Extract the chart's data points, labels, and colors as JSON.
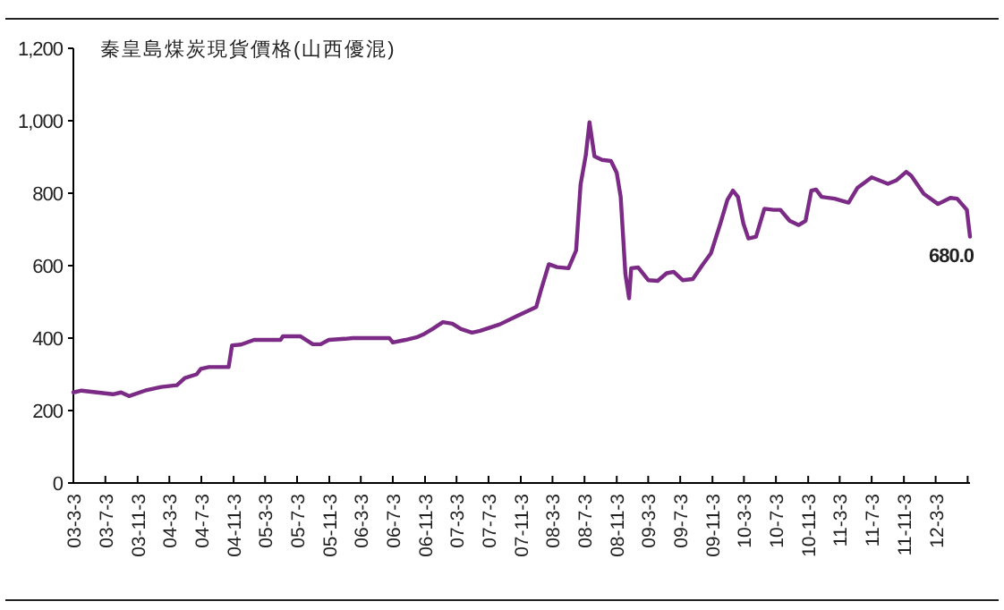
{
  "chart_data": {
    "type": "line",
    "title": "秦皇島煤炭現貨價格(山西優混)",
    "x": [
      "2003-03-03",
      "2003-04-03",
      "2003-08-01",
      "2003-09-01",
      "2003-10-01",
      "2003-12-01",
      "2004-02-01",
      "2004-04-01",
      "2004-05-01",
      "2004-06-15",
      "2004-07-01",
      "2004-08-01",
      "2004-10-15",
      "2004-10-28",
      "2004-12-01",
      "2005-01-20",
      "2005-05-01",
      "2005-05-10",
      "2005-07-15",
      "2005-09-01",
      "2005-10-01",
      "2005-11-01",
      "2006-01-01",
      "2006-02-01",
      "2006-06-20",
      "2006-07-03",
      "2006-08-20",
      "2006-10-01",
      "2006-11-01",
      "2006-12-01",
      "2007-01-10",
      "2007-02-15",
      "2007-03-20",
      "2007-05-01",
      "2007-06-01",
      "2007-08-15",
      "2007-10-20",
      "2008-01-01",
      "2008-01-20",
      "2008-02-18",
      "2008-03-20",
      "2008-05-03",
      "2008-06-01",
      "2008-06-18",
      "2008-07-08",
      "2008-07-22",
      "2008-08-10",
      "2008-09-08",
      "2008-10-12",
      "2008-11-03",
      "2008-11-18",
      "2008-12-06",
      "2008-12-20",
      "2008-12-28",
      "2009-01-24",
      "2009-03-03",
      "2009-04-08",
      "2009-05-12",
      "2009-06-08",
      "2009-07-12",
      "2009-08-20",
      "2009-09-24",
      "2009-10-28",
      "2009-12-03",
      "2009-12-30",
      "2010-01-20",
      "2010-02-08",
      "2010-03-01",
      "2010-03-20",
      "2010-04-18",
      "2010-05-20",
      "2010-06-24",
      "2010-07-20",
      "2010-08-24",
      "2010-09-28",
      "2010-10-24",
      "2010-11-15",
      "2010-12-03",
      "2010-12-24",
      "2011-02-12",
      "2011-04-06",
      "2011-05-10",
      "2011-07-03",
      "2011-09-03",
      "2011-10-06",
      "2011-11-12",
      "2011-12-01",
      "2012-01-18",
      "2012-03-12",
      "2012-04-28",
      "2012-05-24",
      "2012-06-30",
      "2012-07-12"
    ],
    "series": [
      {
        "color": "#7b2a86",
        "values": [
          250,
          255,
          245,
          250,
          240,
          255,
          265,
          270,
          290,
          300,
          315,
          320,
          320,
          380,
          382,
          395,
          395,
          405,
          405,
          383,
          383,
          395,
          398,
          400,
          400,
          388,
          395,
          402,
          412,
          425,
          444,
          440,
          425,
          415,
          420,
          438,
          461,
          486,
          535,
          604,
          596,
          593,
          642,
          824,
          905,
          996,
          902,
          892,
          889,
          856,
          790,
          577,
          510,
          593,
          595,
          560,
          558,
          579,
          583,
          560,
          563,
          600,
          634,
          716,
          782,
          807,
          790,
          716,
          675,
          680,
          757,
          754,
          754,
          724,
          712,
          724,
          807,
          810,
          790,
          785,
          774,
          815,
          844,
          826,
          836,
          859,
          848,
          798,
          770,
          787,
          785,
          754,
          680
        ]
      }
    ],
    "xlim": [
      "2003-03-03",
      "2012-07-12"
    ],
    "ylim": [
      0,
      1200
    ],
    "yticks": [
      0,
      {
        "value": 200,
        "label": "200"
      },
      {
        "value": 400,
        "label": "400"
      },
      {
        "value": 600,
        "label": "600"
      },
      {
        "value": 800,
        "label": "800"
      },
      {
        "value": 1000,
        "label": "1,000"
      },
      {
        "value": 1200,
        "label": "1,200"
      }
    ],
    "xticks": [
      {
        "value": "2003-03-03",
        "label": "03-3-3"
      },
      {
        "value": "2003-07-03",
        "label": "03-7-3"
      },
      {
        "value": "2003-11-03",
        "label": "03-11-3"
      },
      {
        "value": "2004-03-03",
        "label": "04-3-3"
      },
      {
        "value": "2004-07-03",
        "label": "04-7-3"
      },
      {
        "value": "2004-11-03",
        "label": "04-11-3"
      },
      {
        "value": "2005-03-03",
        "label": "05-3-3"
      },
      {
        "value": "2005-07-03",
        "label": "05-7-3"
      },
      {
        "value": "2005-11-03",
        "label": "05-11-3"
      },
      {
        "value": "2006-03-03",
        "label": "06-3-3"
      },
      {
        "value": "2006-07-03",
        "label": "06-7-3"
      },
      {
        "value": "2006-11-03",
        "label": "06-11-3"
      },
      {
        "value": "2007-03-03",
        "label": "07-3-3"
      },
      {
        "value": "2007-07-03",
        "label": "07-7-3"
      },
      {
        "value": "2007-11-03",
        "label": "07-11-3"
      },
      {
        "value": "2008-03-03",
        "label": "08-3-3"
      },
      {
        "value": "2008-07-03",
        "label": "08-7-3"
      },
      {
        "value": "2008-11-03",
        "label": "08-11-3"
      },
      {
        "value": "2009-03-03",
        "label": "09-3-3"
      },
      {
        "value": "2009-07-03",
        "label": "09-7-3"
      },
      {
        "value": "2009-11-03",
        "label": "09-11-3"
      },
      {
        "value": "2010-03-03",
        "label": "10-3-3"
      },
      {
        "value": "2010-07-03",
        "label": "10-7-3"
      },
      {
        "value": "2010-11-03",
        "label": "10-11-3"
      },
      {
        "value": "2011-03-03",
        "label": "11-3-3"
      },
      {
        "value": "2011-07-03",
        "label": "11-7-3"
      },
      {
        "value": "2011-11-03",
        "label": "11-11-3"
      },
      {
        "value": "2012-03-03",
        "label": "12-3-3"
      },
      {
        "value": "2012-07-03",
        "label": null
      }
    ],
    "annotations": [
      {
        "text": "680.0",
        "x": "2012-07-12",
        "y": 680
      }
    ],
    "grid": false,
    "marker": "none",
    "line_style": "solid"
  }
}
